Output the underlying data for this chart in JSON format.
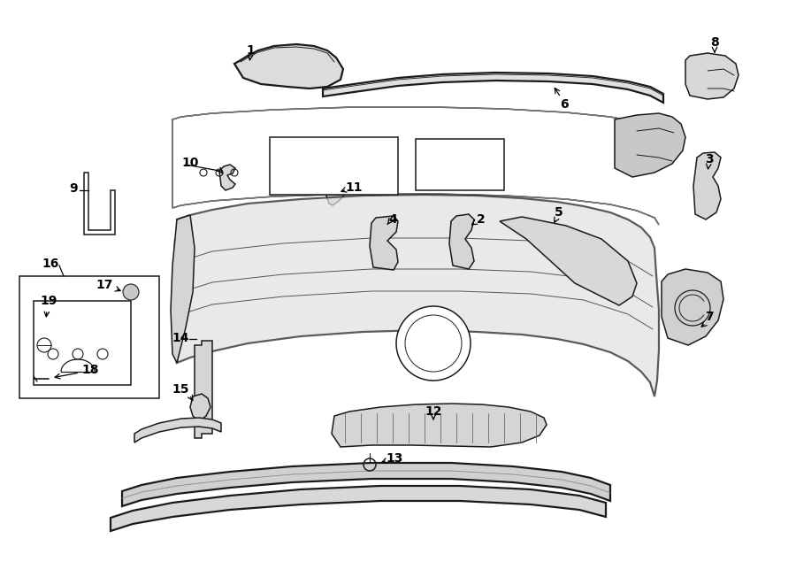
{
  "bg_color": "#ffffff",
  "lc": "#1a1a1a",
  "lw": 1.1,
  "lw_thick": 1.6,
  "figsize": [
    9.0,
    6.61
  ],
  "dpi": 100
}
